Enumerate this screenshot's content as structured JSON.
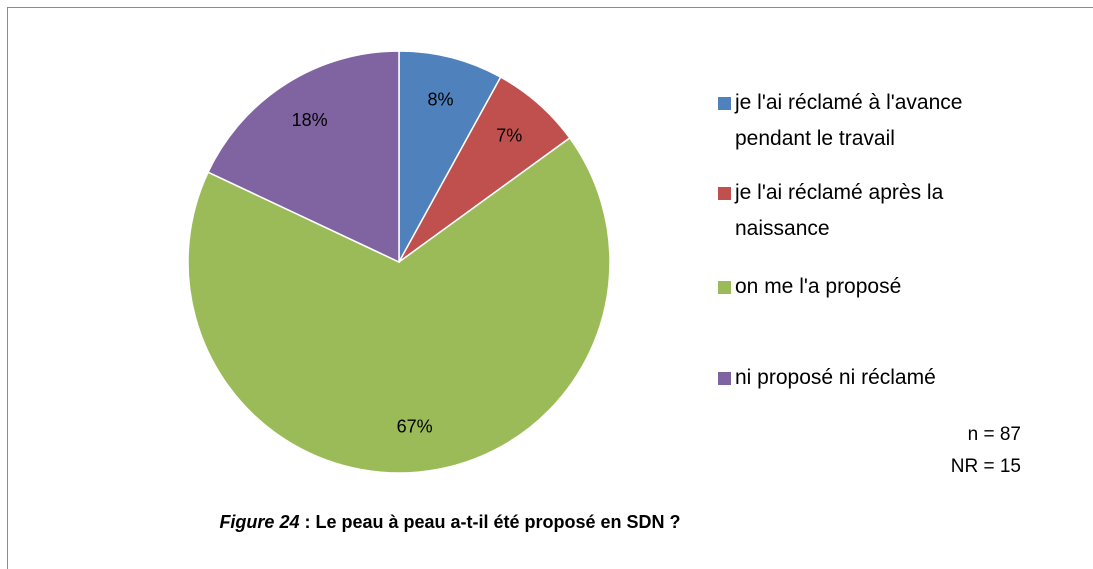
{
  "chart_data": {
    "type": "pie",
    "categories": [
      "je l'ai réclamé à l'avance pendant le travail",
      "je l'ai réclamé après la naissance",
      "on me l'a proposé",
      "ni proposé ni réclamé"
    ],
    "values": [
      8,
      7,
      67,
      18
    ],
    "value_labels": [
      "8%",
      "7%",
      "67%",
      "18%"
    ],
    "colors": [
      "#4f81bd",
      "#c0504d",
      "#9bbb59",
      "#8064a2"
    ],
    "annotations": [
      "n = 87",
      "NR = 15"
    ],
    "figure_label": "Figure 24",
    "caption": ": Le peau à peau a-t-il été proposé en SDN ?"
  }
}
